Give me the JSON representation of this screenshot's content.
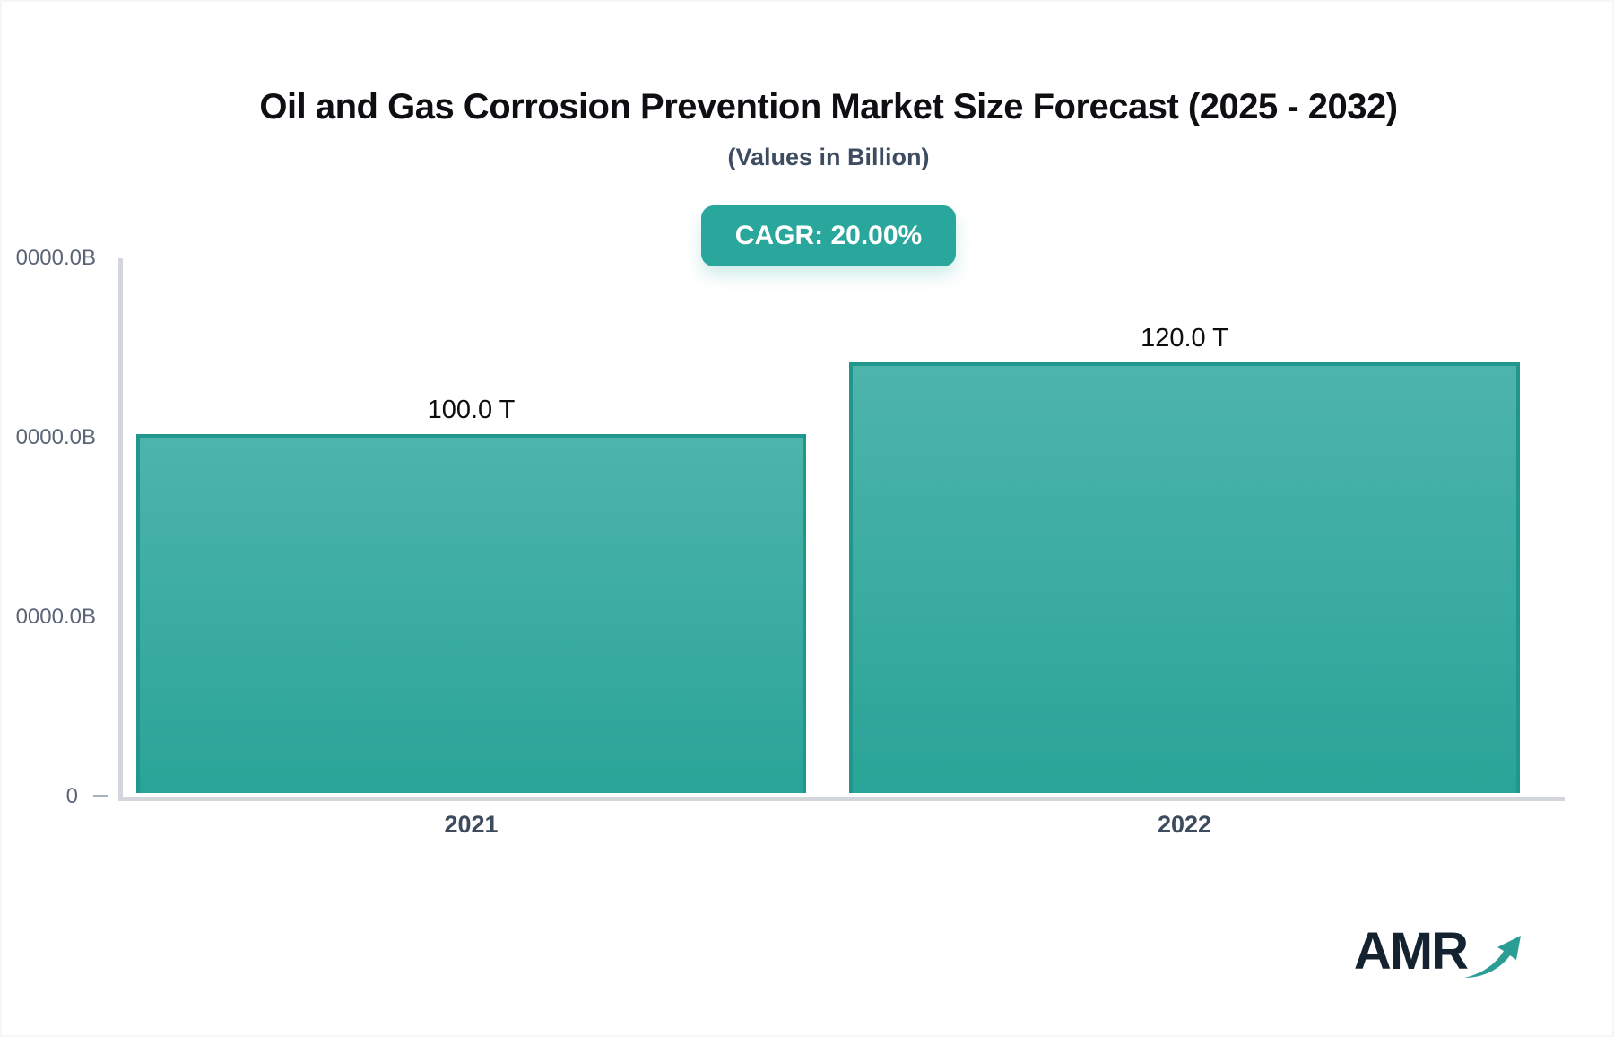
{
  "header": {
    "title": "Oil and Gas Corrosion Prevention Market Size Forecast (2025 - 2032)",
    "subtitle": "(Values in Billion)",
    "cagr_badge": "CAGR: 20.00%"
  },
  "chart_data": {
    "type": "bar",
    "title": "Oil and Gas Corrosion Prevention Market Size Forecast (2025 - 2032)",
    "subtitle": "(Values in Billion)",
    "cagr_percent": 20.0,
    "categories": [
      "2021",
      "2022"
    ],
    "values": [
      100.0,
      120.0
    ],
    "value_labels": [
      "100.0 T",
      "120.0 T"
    ],
    "y_unit": "T",
    "ylim": [
      0,
      150
    ],
    "y_tick_labels_top_to_bottom": [
      "0000.0B",
      "0000.0B",
      "0000.0B",
      "0"
    ],
    "grid": false,
    "legend": false,
    "bar_color_gradient": [
      "#4db4ab",
      "#2aa498"
    ],
    "bar_border_color": "#21968c"
  },
  "colors": {
    "badge_bg": "#2aa79c",
    "axis_line": "#d2d6dc",
    "title_text": "#0e0e13",
    "subtitle_text": "#3e4c61",
    "tick_text": "#5b6577",
    "category_text": "#3d4b5f",
    "logo_text": "#152330",
    "logo_arrow": "#2a9d94"
  },
  "logo": {
    "text": "AMR"
  }
}
